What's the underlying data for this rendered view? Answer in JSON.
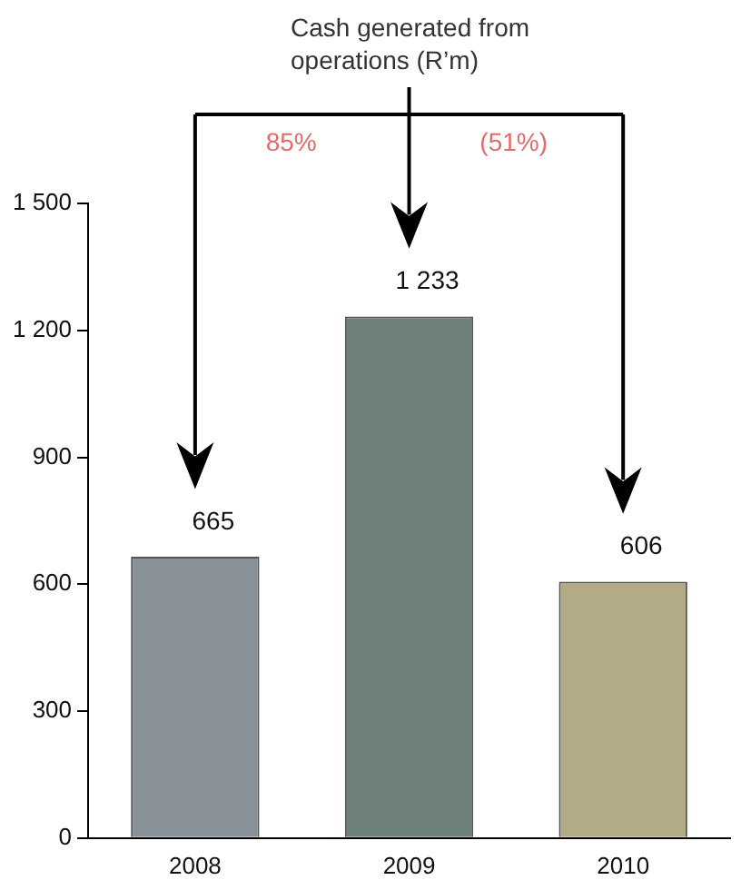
{
  "chart_data": {
    "type": "bar",
    "title": "Cash generated from operations (R’m)",
    "categories": [
      "2008",
      "2009",
      "2010"
    ],
    "values": [
      665,
      1233,
      606
    ],
    "colors": [
      "#8a9299",
      "#6f817b",
      "#b3ab86"
    ],
    "ylim": [
      0,
      1500
    ],
    "yticks": [
      0,
      300,
      600,
      900,
      {
        "value": 1200,
        "label": "1 200"
      },
      {
        "value": 1500,
        "label": "1 500"
      }
    ],
    "data_labels": true,
    "value_labels": [
      "665",
      "1 233",
      "606"
    ],
    "annotations": [
      "85%",
      "(51%)"
    ],
    "grid": false,
    "legend": false
  }
}
